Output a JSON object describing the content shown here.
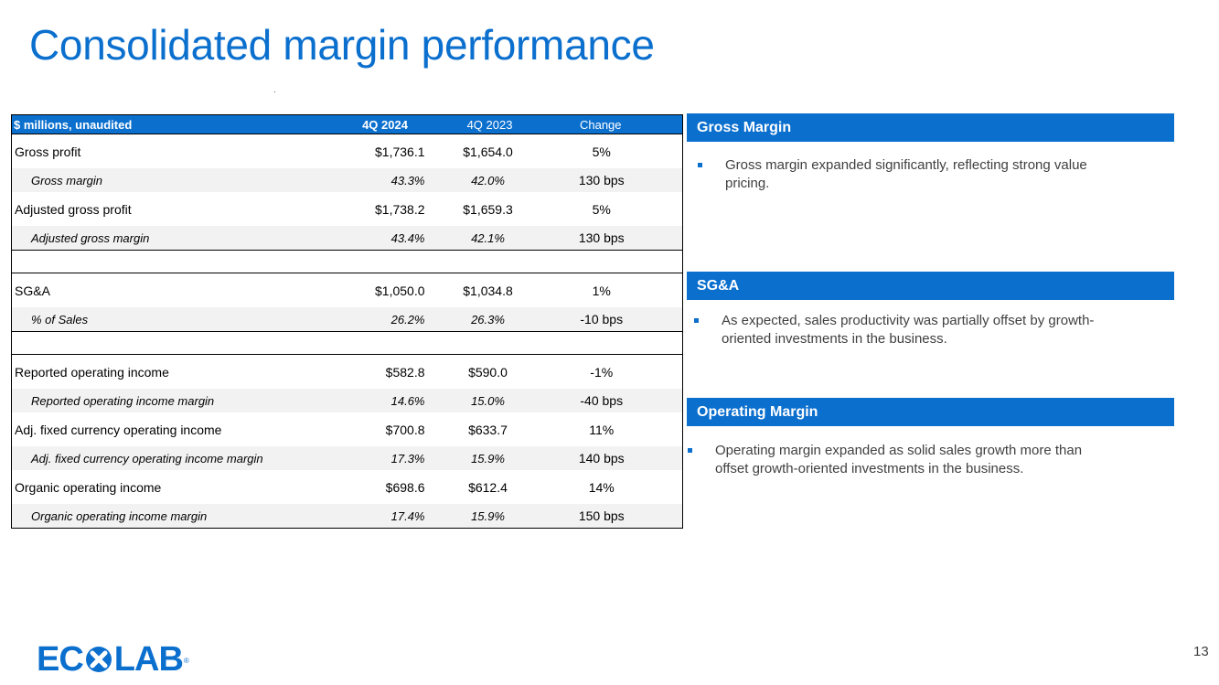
{
  "slide": {
    "title": "Consolidated margin performance",
    "page_number": "13"
  },
  "table": {
    "headers": [
      "$ millions, unaudited",
      "4Q 2024",
      "4Q 2023",
      "Change"
    ],
    "rows": [
      {
        "label": "Gross profit",
        "v2024": "$1,736.1",
        "v2023": "$1,654.0",
        "change": "5%"
      },
      {
        "label": "Gross margin",
        "v2024": "43.3%",
        "v2023": "42.0%",
        "change": "130 bps"
      },
      {
        "label": "Adjusted gross profit",
        "v2024": "$1,738.2",
        "v2023": "$1,659.3",
        "change": "5%"
      },
      {
        "label": "Adjusted gross margin",
        "v2024": "43.4%",
        "v2023": "42.1%",
        "change": "130 bps"
      },
      {
        "label": "SG&A",
        "v2024": "$1,050.0",
        "v2023": "$1,034.8",
        "change": "1%"
      },
      {
        "label": "% of Sales",
        "v2024": "26.2%",
        "v2023": "26.3%",
        "change": "-10 bps"
      },
      {
        "label": "Reported operating income",
        "v2024": "$582.8",
        "v2023": "$590.0",
        "change": "-1%"
      },
      {
        "label": "Reported operating income margin",
        "v2024": "14.6%",
        "v2023": "15.0%",
        "change": "-40 bps"
      },
      {
        "label": "Adj. fixed currency operating income",
        "v2024": "$700.8",
        "v2023": "$633.7",
        "change": "11%"
      },
      {
        "label": "Adj. fixed currency operating income margin",
        "v2024": "17.3%",
        "v2023": "15.9%",
        "change": "140 bps"
      },
      {
        "label": "Organic operating income",
        "v2024": "$698.6",
        "v2023": "$612.4",
        "change": "14%"
      },
      {
        "label": "Organic operating income margin",
        "v2024": "17.4%",
        "v2023": "15.9%",
        "change": "150 bps"
      }
    ]
  },
  "panels": [
    {
      "heading": "Gross Margin",
      "bullet_line1": "Gross margin expanded significantly, reflecting strong value",
      "bullet_line2": "pricing."
    },
    {
      "heading": "SG&A",
      "bullet_line1": "As expected, sales productivity was partially offset by growth-",
      "bullet_line2": "oriented investments in the business."
    },
    {
      "heading": "Operating Margin",
      "bullet_line1": "Operating margin expanded as solid sales growth more than",
      "bullet_line2": "offset growth-oriented investments in the business."
    }
  ],
  "logo": {
    "text_left": "EC",
    "text_right": "LAB",
    "registered": "®",
    "accent_color": "#0b6fce"
  }
}
